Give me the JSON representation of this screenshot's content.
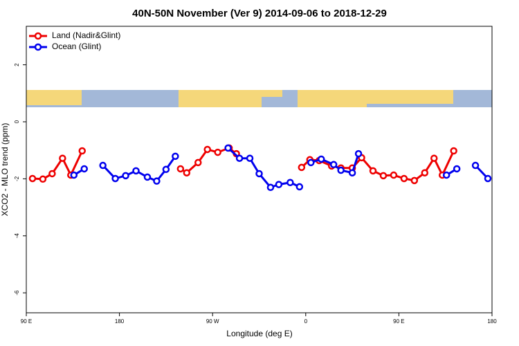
{
  "chart_data": {
    "type": "line",
    "title": "40N-50N November (Ver 9)   2014-09-06 to 2018-12-29",
    "x_label": "Longitude (deg E)",
    "y_label": "XCO2 - MLO trend (ppm)",
    "xlim": [
      90,
      540
    ],
    "xticks": [
      {
        "value": 90,
        "label": "90 E"
      },
      {
        "value": 180,
        "label": "180"
      },
      {
        "value": 270,
        "label": "90 W"
      },
      {
        "value": 360,
        "label": "0"
      },
      {
        "value": 450,
        "label": "90 E"
      },
      {
        "value": 540,
        "label": "180"
      }
    ],
    "ylim": [
      -6.7,
      3.35
    ],
    "yticks": [
      -6,
      -4,
      -2,
      0,
      2
    ],
    "legend": "top-left",
    "series": [
      {
        "name": "Land (Nadir&Glint)",
        "color": "#ee0000",
        "x": [
          96,
          106,
          115,
          125,
          133,
          144,
          null,
          239,
          245,
          256,
          265,
          275,
          286,
          293,
          null,
          356,
          364,
          373,
          385,
          394,
          405,
          414,
          425,
          435,
          445,
          455,
          465,
          475,
          484,
          492,
          503
        ],
        "values": [
          -1.99,
          -2.01,
          -1.82,
          -1.28,
          -1.87,
          -1.02,
          null,
          -1.65,
          -1.79,
          -1.43,
          -0.97,
          -1.07,
          -0.92,
          -1.12,
          null,
          -1.6,
          -1.33,
          -1.36,
          -1.55,
          -1.62,
          -1.62,
          -1.26,
          -1.72,
          -1.89,
          -1.87,
          -1.99,
          -2.06,
          -1.79,
          -1.28,
          -1.87,
          -1.02
        ]
      },
      {
        "name": "Ocean (Glint)",
        "color": "#0000ee",
        "x": [
          136,
          146,
          null,
          164,
          176,
          186,
          196,
          207,
          216,
          225,
          234,
          null,
          285,
          296,
          306,
          315,
          326,
          334,
          345,
          354,
          null,
          365,
          375,
          387,
          394,
          405,
          411,
          null,
          496,
          506,
          null,
          524,
          536
        ],
        "values": [
          -1.87,
          -1.65,
          null,
          -1.53,
          -1.99,
          -1.89,
          -1.72,
          -1.94,
          -2.08,
          -1.67,
          -1.21,
          null,
          -0.92,
          -1.28,
          -1.28,
          -1.82,
          -2.3,
          -2.2,
          -2.13,
          -2.28,
          null,
          -1.43,
          -1.31,
          -1.5,
          -1.7,
          -1.79,
          -1.12,
          null,
          -1.87,
          -1.65,
          null,
          -1.53,
          -1.99
        ]
      }
    ]
  }
}
